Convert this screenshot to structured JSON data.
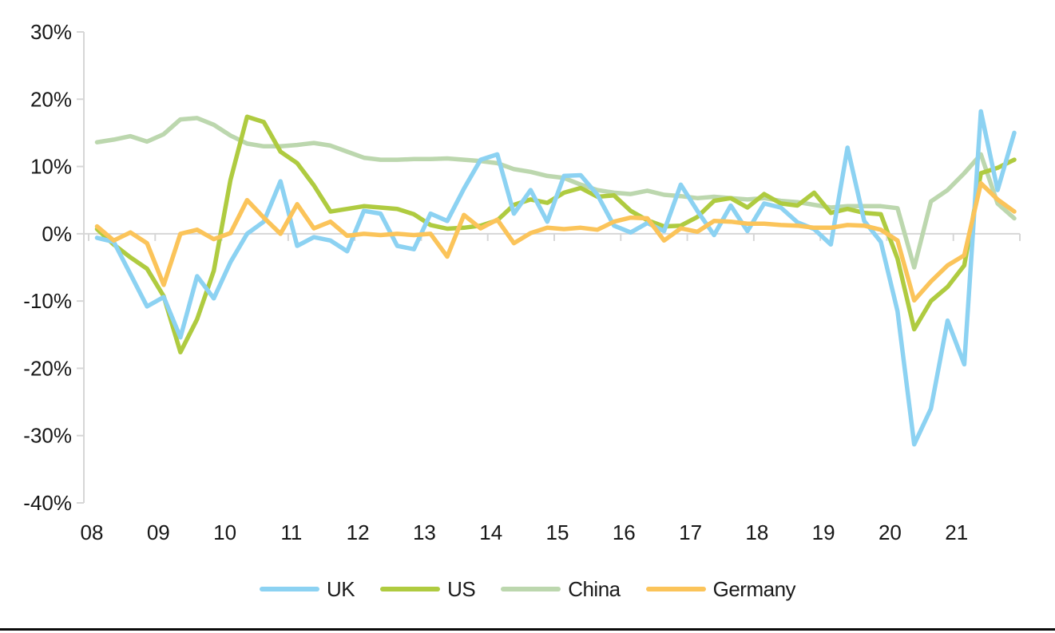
{
  "page": {
    "background_color": "#ffffff",
    "bottom_rule_color": "#0b0b0b"
  },
  "colors": {
    "axis": "#d6d6d6",
    "zero_line": "#d6d6d6",
    "tick": "#d6d6d6",
    "label_text": "#171717",
    "uk": "#8cd2f2",
    "us": "#afcb40",
    "china": "#bcd7ae",
    "germany": "#fbc45a"
  },
  "chart_data": {
    "type": "line",
    "title": "",
    "frequency": "quarterly",
    "x_start_label": "08",
    "x_end_label": "21",
    "x_axis": {
      "tick_labels": [
        "08",
        "09",
        "10",
        "11",
        "12",
        "13",
        "14",
        "15",
        "16",
        "17",
        "18",
        "19",
        "20",
        "21"
      ],
      "points_per_year": 4
    },
    "y_axis": {
      "ticks": [
        {
          "value": 30,
          "label": "30%"
        },
        {
          "value": 20,
          "label": "20%"
        },
        {
          "value": 10,
          "label": "10%"
        },
        {
          "value": 0,
          "label": "0%"
        },
        {
          "value": -10,
          "label": "-10%"
        },
        {
          "value": -20,
          "label": "-20%"
        },
        {
          "value": -30,
          "label": "-30%"
        },
        {
          "value": -40,
          "label": "-40%"
        }
      ],
      "ylim": [
        -40,
        30
      ],
      "format": "percent"
    },
    "grid": "zero-line-only",
    "legend": {
      "position": "bottom",
      "entries": [
        "UK",
        "US",
        "China",
        "Germany"
      ]
    },
    "series": [
      {
        "name": "China",
        "color_key": "china",
        "values": [
          13.6,
          14.0,
          14.5,
          13.7,
          14.8,
          17.0,
          17.2,
          16.2,
          14.6,
          13.4,
          13.0,
          13.0,
          13.2,
          13.5,
          13.1,
          12.2,
          11.3,
          11.0,
          11.0,
          11.1,
          11.1,
          11.2,
          11.0,
          10.8,
          10.5,
          9.6,
          9.2,
          8.6,
          8.3,
          7.3,
          6.5,
          6.1,
          5.9,
          6.4,
          5.8,
          5.6,
          5.3,
          5.5,
          5.3,
          5.1,
          5.3,
          4.9,
          4.7,
          4.3,
          3.9,
          4.1,
          4.1,
          4.1,
          3.8,
          -5.0,
          4.8,
          6.5,
          9.0,
          11.8,
          4.5,
          2.3
        ]
      },
      {
        "name": "US",
        "color_key": "us",
        "values": [
          0.7,
          -1.6,
          -3.5,
          -5.2,
          -9.3,
          -17.6,
          -12.7,
          -5.5,
          8.0,
          17.4,
          16.6,
          12.2,
          10.5,
          7.2,
          3.3,
          3.7,
          4.1,
          3.9,
          3.7,
          2.9,
          1.3,
          0.75,
          0.9,
          1.2,
          2.0,
          4.3,
          5.1,
          4.6,
          6.1,
          6.8,
          5.5,
          5.7,
          3.4,
          2.0,
          1.1,
          1.2,
          2.5,
          4.9,
          5.3,
          3.9,
          5.9,
          4.5,
          4.2,
          6.1,
          3.1,
          3.7,
          3.1,
          2.9,
          -3.7,
          -14.2,
          -10.0,
          -7.9,
          -4.7,
          9.0,
          9.8,
          11.0
        ]
      },
      {
        "name": "UK",
        "color_key": "uk",
        "values": [
          -0.6,
          -1.2,
          -6.0,
          -10.8,
          -9.4,
          -15.4,
          -6.3,
          -9.6,
          -4.2,
          0.0,
          1.8,
          7.8,
          -1.8,
          -0.5,
          -1.0,
          -2.6,
          3.4,
          3.0,
          -1.8,
          -2.3,
          3.0,
          1.9,
          6.7,
          11.0,
          11.8,
          3.0,
          6.5,
          1.8,
          8.6,
          8.7,
          5.8,
          1.2,
          0.2,
          1.6,
          0.4,
          7.3,
          3.4,
          -0.2,
          4.2,
          0.4,
          4.5,
          3.9,
          1.7,
          0.7,
          -1.6,
          12.8,
          1.9,
          -1.2,
          -11.5,
          -31.3,
          -26.0,
          -12.9,
          -19.4,
          18.2,
          6.5,
          15.0
        ]
      },
      {
        "name": "Germany",
        "color_key": "germany",
        "values": [
          1.1,
          -1.0,
          0.2,
          -1.4,
          -7.6,
          0.0,
          0.6,
          -0.8,
          0.1,
          5.0,
          2.4,
          0.0,
          4.4,
          0.8,
          1.8,
          -0.3,
          0.0,
          -0.2,
          0.0,
          -0.2,
          0.0,
          -3.4,
          2.8,
          0.8,
          2.1,
          -1.4,
          0.1,
          0.9,
          0.7,
          0.9,
          0.6,
          1.8,
          2.4,
          2.3,
          -1.0,
          0.8,
          0.3,
          1.9,
          1.8,
          1.5,
          1.5,
          1.3,
          1.2,
          0.9,
          0.9,
          1.3,
          1.2,
          0.6,
          -1.0,
          -9.9,
          -7.1,
          -4.7,
          -3.2,
          7.5,
          5.1,
          3.3
        ]
      }
    ],
    "legend_order": [
      "UK",
      "US",
      "China",
      "Germany"
    ]
  }
}
